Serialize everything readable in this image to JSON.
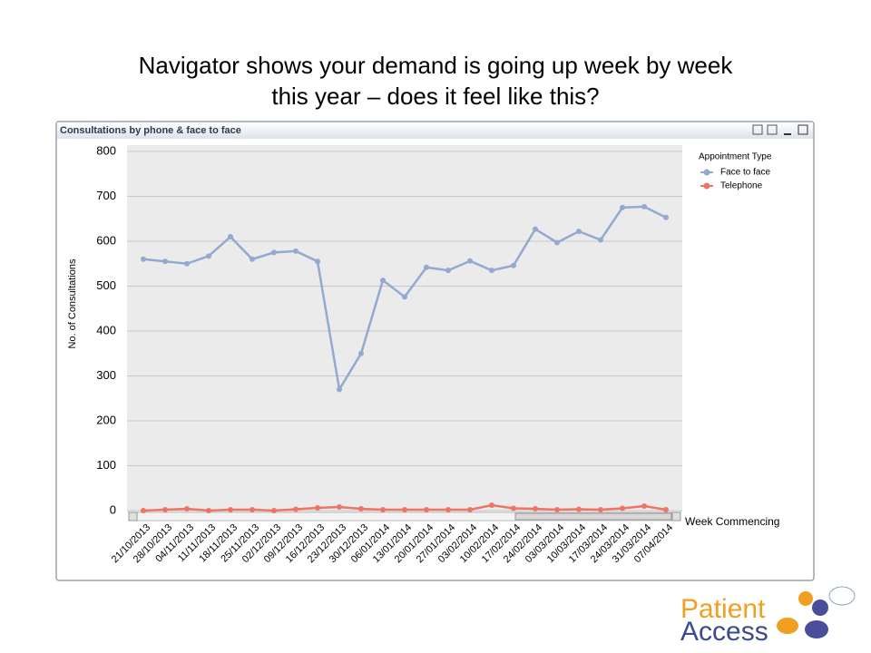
{
  "chart_data": {
    "type": "line",
    "title": [
      "Navigator shows your demand is going up week by week",
      "this year – does it feel like this?"
    ],
    "window_title": "Consultations by phone & face to face",
    "y_label": "No. of Consultations",
    "x_label": "Week Commencing",
    "legend_title": "Appointment Type",
    "categories": [
      "21/10/2013",
      "28/10/2013",
      "04/11/2013",
      "11/11/2013",
      "18/11/2013",
      "25/11/2013",
      "02/12/2013",
      "09/12/2013",
      "16/12/2013",
      "23/12/2013",
      "30/12/2013",
      "06/01/2014",
      "13/01/2014",
      "20/01/2014",
      "27/01/2014",
      "03/02/2014",
      "10/02/2014",
      "17/02/2014",
      "24/02/2014",
      "03/03/2014",
      "10/03/2014",
      "17/03/2014",
      "24/03/2014",
      "31/03/2014",
      "07/04/2014"
    ],
    "series": [
      {
        "name": "Face to face",
        "color": "#92aad0",
        "values": [
          560,
          555,
          550,
          567,
          610,
          560,
          575,
          578,
          555,
          270,
          350,
          513,
          476,
          542,
          535,
          556,
          535,
          546,
          627,
          597,
          622,
          603,
          675,
          677,
          653
        ]
      },
      {
        "name": "Telephone",
        "color": "#ee7466",
        "values": [
          0,
          2,
          4,
          0,
          2,
          2,
          0,
          3,
          6,
          8,
          4,
          2,
          2,
          2,
          2,
          2,
          12,
          5,
          4,
          2,
          3,
          2,
          5,
          10,
          2
        ]
      }
    ],
    "ylim": [
      0,
      800
    ],
    "yticks": [
      0,
      100,
      200,
      300,
      400,
      500,
      600,
      700,
      800
    ],
    "grid": true,
    "legend": "right",
    "logo": [
      "Patient",
      "Access"
    ]
  }
}
